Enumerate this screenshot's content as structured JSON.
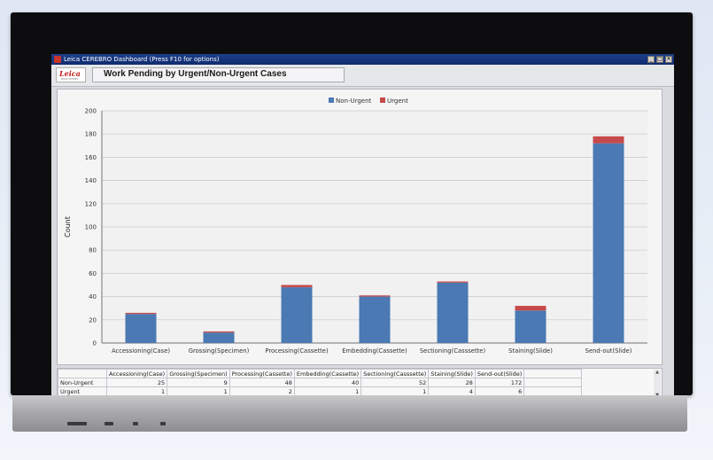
{
  "window": {
    "title": "Leica CEREBRO Dashboard (Press F10 for options)",
    "buttons": [
      "_",
      "□",
      "✕"
    ]
  },
  "header": {
    "logo_text": "Leica",
    "logo_sub": "BIOSYSTEMS",
    "page_title": "Work Pending by Urgent/Non-Urgent Cases"
  },
  "colors": {
    "non_urgent": "#4a79b3",
    "urgent": "#c64a4a"
  },
  "chart_data": {
    "type": "bar",
    "stacked": true,
    "categories": [
      "Accessioning(Case)",
      "Grossing(Specimen)",
      "Processing(Cassette)",
      "Embedding(Cassette)",
      "Sectioning(Casssette)",
      "Staining(Slide)",
      "Send-out(Slide)"
    ],
    "series": [
      {
        "name": "Non-Urgent",
        "values": [
          25,
          9,
          48,
          40,
          52,
          28,
          172
        ]
      },
      {
        "name": "Urgent",
        "values": [
          1,
          1,
          2,
          1,
          1,
          4,
          6
        ]
      }
    ],
    "ylabel": "Count",
    "ylim": [
      0,
      200
    ],
    "yticks": [
      0,
      20,
      40,
      60,
      80,
      100,
      120,
      140,
      160,
      180,
      200
    ],
    "grid": true,
    "legend": "top-center"
  },
  "table": {
    "columns": [
      "Accessioning(Case)",
      "Grossing(Specimen)",
      "Processing(Cassette)",
      "Embedding(Cassette)",
      "Sectioning(Casssette)",
      "Staining(Slide)",
      "Send-out(Slide)"
    ],
    "rows": [
      {
        "label": "Non-Urgent",
        "values": [
          "25",
          "9",
          "48",
          "40",
          "52",
          "28",
          "172"
        ]
      },
      {
        "label": "Urgent",
        "values": [
          "1",
          "1",
          "2",
          "1",
          "1",
          "4",
          "6"
        ]
      }
    ]
  }
}
